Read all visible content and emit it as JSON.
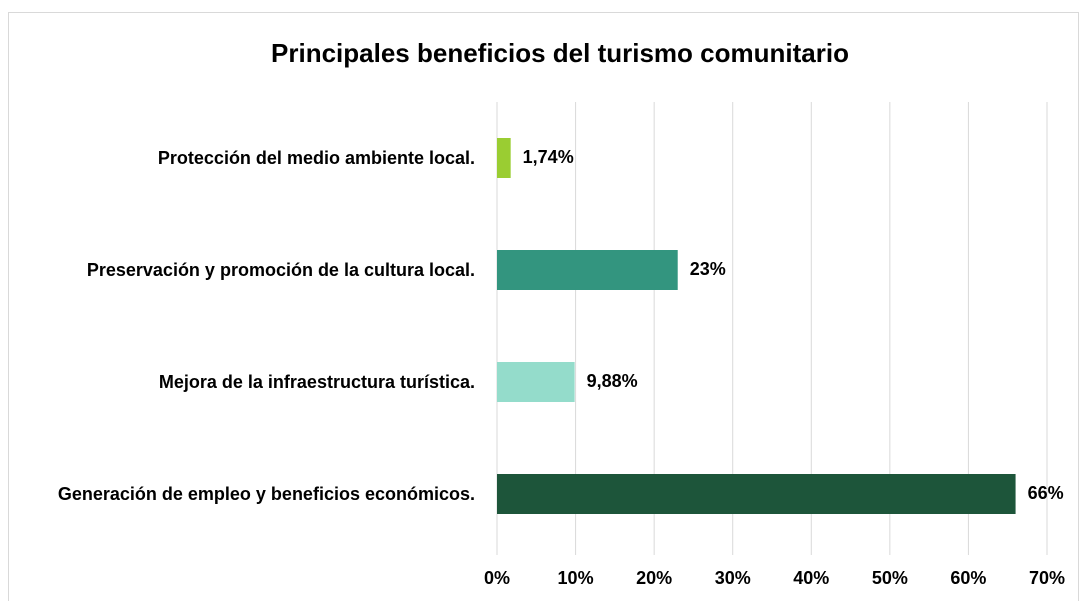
{
  "chart_data": {
    "type": "barh",
    "title": "Principales beneficios del turismo comunitario",
    "categories": [
      "Protección del medio ambiente local.",
      "Preservación y promoción de la cultura local.",
      "Mejora de la infraestructura turística.",
      "Generación de empleo y beneficios económicos."
    ],
    "values": [
      1.74,
      23,
      9.88,
      66
    ],
    "value_labels": [
      "1,74%",
      "23%",
      "9,88%",
      "66%"
    ],
    "colors": [
      "#9acd32",
      "#33957f",
      "#94dccb",
      "#1d553a"
    ],
    "xlim": [
      0,
      70
    ],
    "xticks": [
      {
        "value": 0,
        "label": "0%"
      },
      {
        "value": 10,
        "label": "10%"
      },
      {
        "value": 20,
        "label": "20%"
      },
      {
        "value": 30,
        "label": "30%"
      },
      {
        "value": 40,
        "label": "40%"
      },
      {
        "value": 50,
        "label": "50%"
      },
      {
        "value": 60,
        "label": "60%"
      },
      {
        "value": 70,
        "label": "70%"
      }
    ],
    "grid": true
  }
}
